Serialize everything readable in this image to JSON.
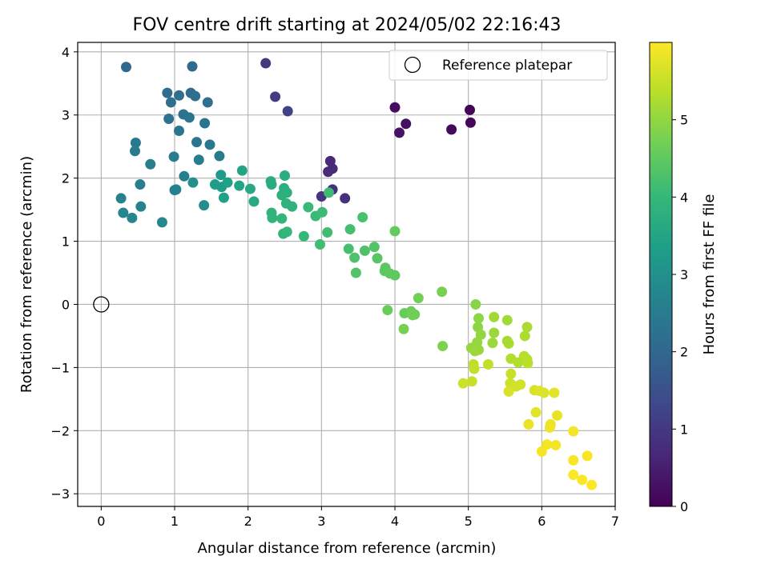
{
  "chart_data": {
    "type": "scatter",
    "title": "FOV centre drift starting at 2024/05/02 22:16:43",
    "xlabel": "Angular distance from reference (arcmin)",
    "ylabel": "Rotation from reference (arcmin)",
    "xlim": [
      -0.32,
      7.0
    ],
    "ylim": [
      -3.2,
      4.15
    ],
    "xticks": [
      "0",
      "1",
      "2",
      "3",
      "4",
      "5",
      "6",
      "7"
    ],
    "yticks": [
      "4",
      "3",
      "2",
      "1",
      "0",
      "−1",
      "−2",
      "−3"
    ],
    "grid": true,
    "legend": {
      "placement": "top-right",
      "entries": [
        "Reference platepar"
      ]
    },
    "reference_point": {
      "name": "Reference platepar",
      "x": 0,
      "y": 0
    },
    "colorbar": {
      "label": "Hours from first FF file",
      "range": [
        0,
        6.0
      ],
      "ticks": [
        "0",
        "1",
        "2",
        "3",
        "4",
        "5"
      ],
      "colormap": "viridis"
    },
    "colors": {
      "viridis_stops": [
        "#440154",
        "#482878",
        "#3e4989",
        "#31688e",
        "#26828e",
        "#1f9e89",
        "#35b779",
        "#6ece58",
        "#b5de2b",
        "#fde725"
      ]
    },
    "points": [
      {
        "x": 5.02,
        "y": 3.08,
        "t": 0.05
      },
      {
        "x": 5.03,
        "y": 2.88,
        "t": 0.1
      },
      {
        "x": 4.77,
        "y": 2.77,
        "t": 0.15
      },
      {
        "x": 4.0,
        "y": 3.12,
        "t": 0.2
      },
      {
        "x": 4.15,
        "y": 2.86,
        "t": 0.25
      },
      {
        "x": 4.06,
        "y": 2.72,
        "t": 0.3
      },
      {
        "x": 3.12,
        "y": 2.27,
        "t": 0.7
      },
      {
        "x": 3.15,
        "y": 2.15,
        "t": 0.72
      },
      {
        "x": 3.09,
        "y": 2.1,
        "t": 0.75
      },
      {
        "x": 3.15,
        "y": 1.82,
        "t": 0.8
      },
      {
        "x": 3.32,
        "y": 1.68,
        "t": 0.85
      },
      {
        "x": 3.0,
        "y": 1.71,
        "t": 0.9
      },
      {
        "x": 2.24,
        "y": 3.82,
        "t": 1.0
      },
      {
        "x": 2.37,
        "y": 3.29,
        "t": 1.1
      },
      {
        "x": 2.54,
        "y": 3.06,
        "t": 1.2
      },
      {
        "x": 0.34,
        "y": 3.76,
        "t": 2.0
      },
      {
        "x": 1.24,
        "y": 3.77,
        "t": 2.05
      },
      {
        "x": 0.9,
        "y": 3.35,
        "t": 2.1
      },
      {
        "x": 1.22,
        "y": 3.35,
        "t": 2.1
      },
      {
        "x": 1.06,
        "y": 3.31,
        "t": 2.15
      },
      {
        "x": 1.28,
        "y": 3.3,
        "t": 2.15
      },
      {
        "x": 0.95,
        "y": 3.2,
        "t": 2.2
      },
      {
        "x": 1.45,
        "y": 3.2,
        "t": 2.2
      },
      {
        "x": 1.12,
        "y": 3.01,
        "t": 2.25
      },
      {
        "x": 0.92,
        "y": 2.94,
        "t": 2.25
      },
      {
        "x": 1.2,
        "y": 2.96,
        "t": 2.3
      },
      {
        "x": 1.41,
        "y": 2.87,
        "t": 2.3
      },
      {
        "x": 1.06,
        "y": 2.75,
        "t": 2.35
      },
      {
        "x": 1.3,
        "y": 2.57,
        "t": 2.35
      },
      {
        "x": 1.48,
        "y": 2.53,
        "t": 2.4
      },
      {
        "x": 0.47,
        "y": 2.56,
        "t": 2.4
      },
      {
        "x": 0.46,
        "y": 2.43,
        "t": 2.45
      },
      {
        "x": 1.61,
        "y": 2.35,
        "t": 2.45
      },
      {
        "x": 0.99,
        "y": 2.34,
        "t": 2.5
      },
      {
        "x": 1.33,
        "y": 2.29,
        "t": 2.5
      },
      {
        "x": 0.67,
        "y": 2.22,
        "t": 2.55
      },
      {
        "x": 1.13,
        "y": 2.03,
        "t": 2.6
      },
      {
        "x": 0.53,
        "y": 1.9,
        "t": 2.6
      },
      {
        "x": 1.0,
        "y": 1.81,
        "t": 2.65
      },
      {
        "x": 1.02,
        "y": 1.82,
        "t": 2.65
      },
      {
        "x": 0.27,
        "y": 1.68,
        "t": 2.7
      },
      {
        "x": 0.54,
        "y": 1.55,
        "t": 2.7
      },
      {
        "x": 0.3,
        "y": 1.45,
        "t": 2.75
      },
      {
        "x": 0.42,
        "y": 1.37,
        "t": 2.75
      },
      {
        "x": 0.83,
        "y": 1.3,
        "t": 2.8
      },
      {
        "x": 1.4,
        "y": 1.57,
        "t": 2.9
      },
      {
        "x": 1.25,
        "y": 1.93,
        "t": 3.0
      },
      {
        "x": 1.63,
        "y": 2.05,
        "t": 3.2
      },
      {
        "x": 1.55,
        "y": 1.9,
        "t": 3.3
      },
      {
        "x": 1.64,
        "y": 1.86,
        "t": 3.3
      },
      {
        "x": 1.67,
        "y": 1.69,
        "t": 3.4
      },
      {
        "x": 1.72,
        "y": 1.93,
        "t": 3.4
      },
      {
        "x": 1.88,
        "y": 1.88,
        "t": 3.5
      },
      {
        "x": 1.92,
        "y": 2.12,
        "t": 3.5
      },
      {
        "x": 2.03,
        "y": 1.83,
        "t": 3.6
      },
      {
        "x": 2.08,
        "y": 1.63,
        "t": 3.6
      },
      {
        "x": 2.31,
        "y": 1.95,
        "t": 3.7
      },
      {
        "x": 2.32,
        "y": 1.9,
        "t": 3.7
      },
      {
        "x": 2.5,
        "y": 2.04,
        "t": 3.75
      },
      {
        "x": 2.49,
        "y": 1.84,
        "t": 3.75
      },
      {
        "x": 2.53,
        "y": 1.77,
        "t": 3.8
      },
      {
        "x": 2.46,
        "y": 1.73,
        "t": 3.8
      },
      {
        "x": 2.52,
        "y": 1.6,
        "t": 3.85
      },
      {
        "x": 2.6,
        "y": 1.55,
        "t": 3.85
      },
      {
        "x": 2.32,
        "y": 1.45,
        "t": 3.9
      },
      {
        "x": 2.33,
        "y": 1.37,
        "t": 3.9
      },
      {
        "x": 2.46,
        "y": 1.36,
        "t": 3.95
      },
      {
        "x": 2.48,
        "y": 1.12,
        "t": 3.95
      },
      {
        "x": 2.53,
        "y": 1.15,
        "t": 4.0
      },
      {
        "x": 2.76,
        "y": 1.08,
        "t": 4.0
      },
      {
        "x": 2.82,
        "y": 1.54,
        "t": 4.05
      },
      {
        "x": 2.92,
        "y": 1.4,
        "t": 4.05
      },
      {
        "x": 3.01,
        "y": 1.46,
        "t": 4.1
      },
      {
        "x": 3.1,
        "y": 1.77,
        "t": 4.1
      },
      {
        "x": 3.08,
        "y": 1.14,
        "t": 4.15
      },
      {
        "x": 2.98,
        "y": 0.95,
        "t": 4.15
      },
      {
        "x": 3.37,
        "y": 0.88,
        "t": 4.2
      },
      {
        "x": 3.39,
        "y": 1.19,
        "t": 4.2
      },
      {
        "x": 3.56,
        "y": 1.38,
        "t": 4.25
      },
      {
        "x": 3.45,
        "y": 0.74,
        "t": 4.3
      },
      {
        "x": 3.59,
        "y": 0.85,
        "t": 4.3
      },
      {
        "x": 3.72,
        "y": 0.91,
        "t": 4.35
      },
      {
        "x": 3.47,
        "y": 0.5,
        "t": 4.35
      },
      {
        "x": 3.76,
        "y": 0.73,
        "t": 4.4
      },
      {
        "x": 3.87,
        "y": 0.58,
        "t": 4.45
      },
      {
        "x": 3.86,
        "y": 0.53,
        "t": 4.45
      },
      {
        "x": 3.93,
        "y": 0.49,
        "t": 4.5
      },
      {
        "x": 4.0,
        "y": 0.46,
        "t": 4.5
      },
      {
        "x": 4.0,
        "y": 1.16,
        "t": 4.55
      },
      {
        "x": 3.9,
        "y": -0.09,
        "t": 4.6
      },
      {
        "x": 4.13,
        "y": -0.14,
        "t": 4.6
      },
      {
        "x": 4.22,
        "y": -0.11,
        "t": 4.65
      },
      {
        "x": 4.27,
        "y": -0.16,
        "t": 4.65
      },
      {
        "x": 4.24,
        "y": -0.17,
        "t": 4.7
      },
      {
        "x": 4.32,
        "y": 0.1,
        "t": 4.7
      },
      {
        "x": 4.12,
        "y": -0.39,
        "t": 4.75
      },
      {
        "x": 4.64,
        "y": 0.2,
        "t": 4.75
      },
      {
        "x": 4.65,
        "y": -0.66,
        "t": 4.8
      },
      {
        "x": 5.1,
        "y": 0.0,
        "t": 4.9
      },
      {
        "x": 5.14,
        "y": -0.22,
        "t": 4.95
      },
      {
        "x": 5.13,
        "y": -0.36,
        "t": 4.95
      },
      {
        "x": 5.17,
        "y": -0.48,
        "t": 5.0
      },
      {
        "x": 5.04,
        "y": -0.69,
        "t": 5.0
      },
      {
        "x": 5.12,
        "y": -0.6,
        "t": 5.05
      },
      {
        "x": 5.14,
        "y": -0.72,
        "t": 5.05
      },
      {
        "x": 5.09,
        "y": -0.74,
        "t": 5.1
      },
      {
        "x": 5.33,
        "y": -0.61,
        "t": 5.1
      },
      {
        "x": 5.35,
        "y": -0.45,
        "t": 5.1
      },
      {
        "x": 5.35,
        "y": -0.2,
        "t": 5.15
      },
      {
        "x": 5.53,
        "y": -0.25,
        "t": 5.15
      },
      {
        "x": 5.53,
        "y": -0.58,
        "t": 5.2
      },
      {
        "x": 5.55,
        "y": -0.62,
        "t": 5.2
      },
      {
        "x": 5.8,
        "y": -0.36,
        "t": 5.25
      },
      {
        "x": 5.77,
        "y": -0.5,
        "t": 5.25
      },
      {
        "x": 5.58,
        "y": -0.86,
        "t": 5.3
      },
      {
        "x": 5.68,
        "y": -0.92,
        "t": 5.3
      },
      {
        "x": 5.76,
        "y": -0.82,
        "t": 5.35
      },
      {
        "x": 5.8,
        "y": -0.87,
        "t": 5.35
      },
      {
        "x": 5.81,
        "y": -0.93,
        "t": 5.4
      },
      {
        "x": 5.07,
        "y": -0.95,
        "t": 5.4
      },
      {
        "x": 5.08,
        "y": -1.02,
        "t": 5.45
      },
      {
        "x": 5.27,
        "y": -0.95,
        "t": 5.45
      },
      {
        "x": 5.58,
        "y": -1.1,
        "t": 5.5
      },
      {
        "x": 5.05,
        "y": -1.22,
        "t": 5.5
      },
      {
        "x": 4.93,
        "y": -1.25,
        "t": 5.55
      },
      {
        "x": 5.57,
        "y": -1.25,
        "t": 5.55
      },
      {
        "x": 5.65,
        "y": -1.3,
        "t": 5.6
      },
      {
        "x": 5.71,
        "y": -1.27,
        "t": 5.6
      },
      {
        "x": 5.55,
        "y": -1.38,
        "t": 5.65
      },
      {
        "x": 5.9,
        "y": -1.36,
        "t": 5.65
      },
      {
        "x": 5.97,
        "y": -1.37,
        "t": 5.7
      },
      {
        "x": 6.03,
        "y": -1.4,
        "t": 5.7
      },
      {
        "x": 6.17,
        "y": -1.4,
        "t": 5.75
      },
      {
        "x": 5.92,
        "y": -1.71,
        "t": 5.75
      },
      {
        "x": 6.21,
        "y": -1.76,
        "t": 5.8
      },
      {
        "x": 5.82,
        "y": -1.9,
        "t": 5.8
      },
      {
        "x": 6.12,
        "y": -1.9,
        "t": 5.85
      },
      {
        "x": 6.11,
        "y": -1.95,
        "t": 5.85
      },
      {
        "x": 6.43,
        "y": -2.01,
        "t": 5.9
      },
      {
        "x": 6.07,
        "y": -2.22,
        "t": 5.9
      },
      {
        "x": 6.19,
        "y": -2.23,
        "t": 5.92
      },
      {
        "x": 6.0,
        "y": -2.33,
        "t": 5.92
      },
      {
        "x": 6.62,
        "y": -2.4,
        "t": 5.95
      },
      {
        "x": 6.43,
        "y": -2.47,
        "t": 5.95
      },
      {
        "x": 6.43,
        "y": -2.7,
        "t": 5.97
      },
      {
        "x": 6.55,
        "y": -2.78,
        "t": 5.98
      },
      {
        "x": 6.68,
        "y": -2.86,
        "t": 6.0
      }
    ]
  }
}
